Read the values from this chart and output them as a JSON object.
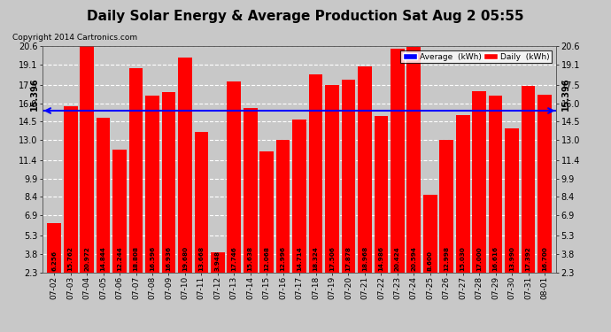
{
  "title": "Daily Solar Energy & Average Production Sat Aug 2 05:55",
  "copyright": "Copyright 2014 Cartronics.com",
  "average_value": 15.396,
  "average_label": "15.396",
  "categories": [
    "07-02",
    "07-03",
    "07-04",
    "07-05",
    "07-06",
    "07-07",
    "07-08",
    "07-09",
    "07-10",
    "07-11",
    "07-12",
    "07-13",
    "07-14",
    "07-15",
    "07-16",
    "07-17",
    "07-18",
    "07-19",
    "07-20",
    "07-21",
    "07-22",
    "07-23",
    "07-24",
    "07-25",
    "07-26",
    "07-27",
    "07-28",
    "07-29",
    "07-30",
    "07-31",
    "08-01"
  ],
  "values": [
    6.256,
    15.762,
    20.972,
    14.844,
    12.244,
    18.808,
    16.596,
    16.936,
    19.68,
    13.668,
    3.948,
    17.746,
    15.638,
    12.068,
    12.996,
    14.714,
    18.324,
    17.506,
    17.878,
    18.968,
    14.986,
    20.424,
    20.594,
    8.6,
    12.998,
    15.03,
    17.0,
    16.616,
    13.99,
    17.392,
    16.7
  ],
  "bar_color": "#ff0000",
  "avg_line_color": "#0000ff",
  "background_color": "#c8c8c8",
  "plot_bg_color": "#c8c8c8",
  "grid_color": "#ffffff",
  "yticks": [
    2.3,
    3.8,
    5.3,
    6.9,
    8.4,
    9.9,
    11.4,
    13.0,
    14.5,
    16.0,
    17.5,
    19.1,
    20.6
  ],
  "ylim": [
    2.3,
    20.6
  ],
  "title_fontsize": 11,
  "legend_avg_label": "Average  (kWh)",
  "legend_daily_label": "Daily  (kWh)"
}
